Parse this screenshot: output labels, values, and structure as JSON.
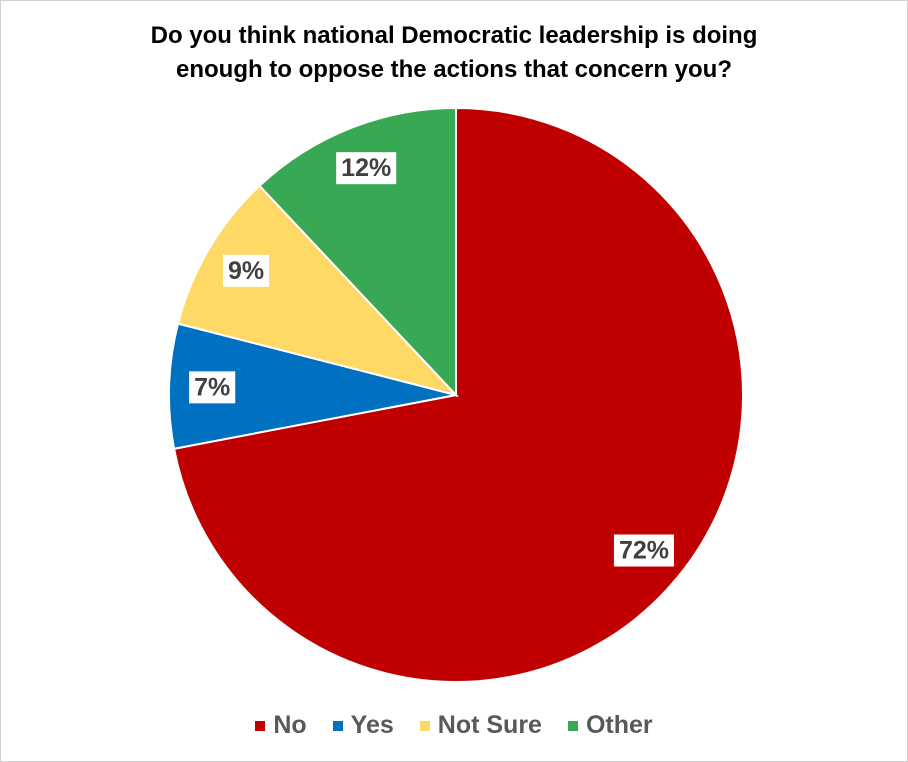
{
  "chart_data": {
    "type": "pie",
    "title": "Do you think national Democratic leadership is doing\nenough to oppose the actions that concern you?",
    "categories": [
      "No",
      "Yes",
      "Not Sure",
      "Other"
    ],
    "values": [
      72,
      7,
      9,
      12
    ],
    "value_labels": [
      "72%",
      "7%",
      "9%",
      "12%"
    ],
    "colors": [
      "#c00000",
      "#0070c0",
      "#ffd966",
      "#38a854"
    ],
    "legend": "bottom"
  }
}
